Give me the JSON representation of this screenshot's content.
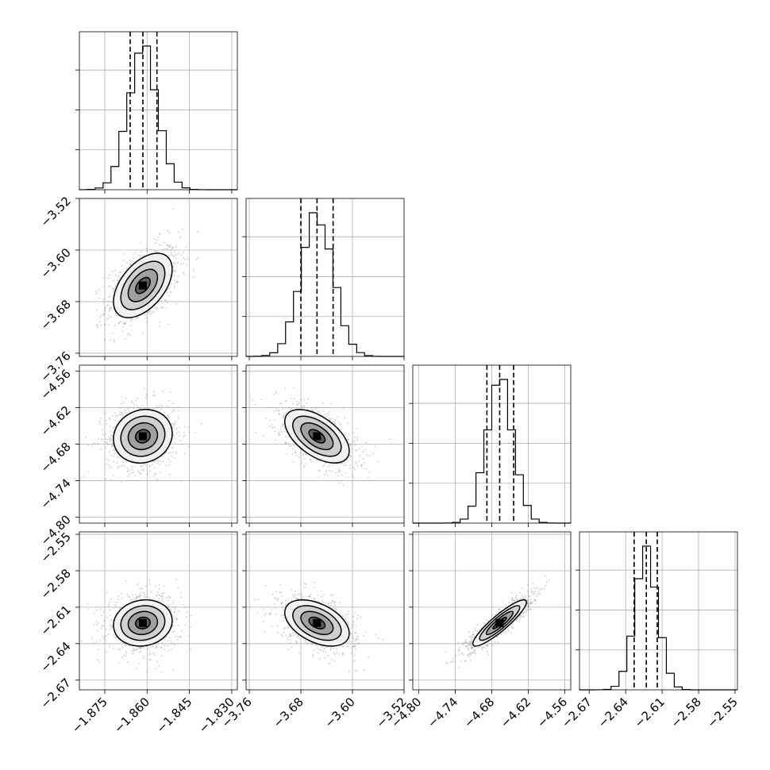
{
  "chart_data": {
    "type": "corner",
    "title": "",
    "colors": {
      "line": "#000000",
      "grid": "#b0b0b0",
      "scatter": "#888888",
      "background": "#ffffff"
    },
    "grid": true,
    "parameters": [
      {
        "name": "",
        "median": -1.8615,
        "q16": -1.866,
        "q84": -1.8565,
        "sigma": 0.0052,
        "range": [
          -1.884,
          -1.828
        ],
        "ticks": [
          -1.875,
          -1.86,
          -1.845,
          -1.83
        ],
        "tick_labels": [
          "−1.875",
          "−1.860",
          "−1.845",
          "−1.830"
        ]
      },
      {
        "name": "",
        "median": -3.655,
        "q16": -3.68,
        "q84": -3.63,
        "sigma": 0.025,
        "range": [
          -3.765,
          -3.52
        ],
        "ticks": [
          -3.76,
          -3.68,
          -3.6,
          -3.52
        ],
        "tick_labels": [
          "−3.76",
          "−3.68",
          "−3.60",
          "−3.52"
        ],
        "hist_ticks": [
          -3.52,
          -3.6,
          -3.68,
          -3.76
        ]
      },
      {
        "name": "",
        "median": -4.667,
        "q16": -4.688,
        "q84": -4.644,
        "sigma": 0.022,
        "range": [
          -4.81,
          -4.55
        ],
        "ticks": [
          -4.8,
          -4.74,
          -4.68,
          -4.62,
          -4.56
        ],
        "tick_labels": [
          "−4.80",
          "−4.74",
          "−4.68",
          "−4.62",
          "−4.56"
        ],
        "hist_ticks": [
          -4.56,
          -4.62,
          -4.68,
          -4.74,
          -4.8
        ]
      },
      {
        "name": "",
        "median": -2.623,
        "q16": -2.633,
        "q84": -2.614,
        "sigma": 0.0095,
        "range": [
          -2.678,
          -2.548
        ],
        "ticks": [
          -2.67,
          -2.64,
          -2.61,
          -2.58,
          -2.55
        ],
        "tick_labels": [
          "−2.67",
          "−2.64",
          "−2.61",
          "−2.58",
          "−2.55"
        ],
        "hist_ticks": [
          -2.55,
          -2.58,
          -2.61,
          -2.64,
          -2.67
        ]
      }
    ],
    "correlations": [
      {
        "i": 1,
        "j": 0,
        "rho": 0.5
      },
      {
        "i": 2,
        "j": 0,
        "rho": 0.1
      },
      {
        "i": 2,
        "j": 1,
        "rho": -0.55
      },
      {
        "i": 3,
        "j": 0,
        "rho": 0.1
      },
      {
        "i": 3,
        "j": 1,
        "rho": -0.45
      },
      {
        "i": 3,
        "j": 2,
        "rho": 0.9
      }
    ],
    "contour_levels_sigma": [
      0.5,
      1.0,
      1.5,
      2.0
    ],
    "scatter_points_per_panel": 900
  }
}
